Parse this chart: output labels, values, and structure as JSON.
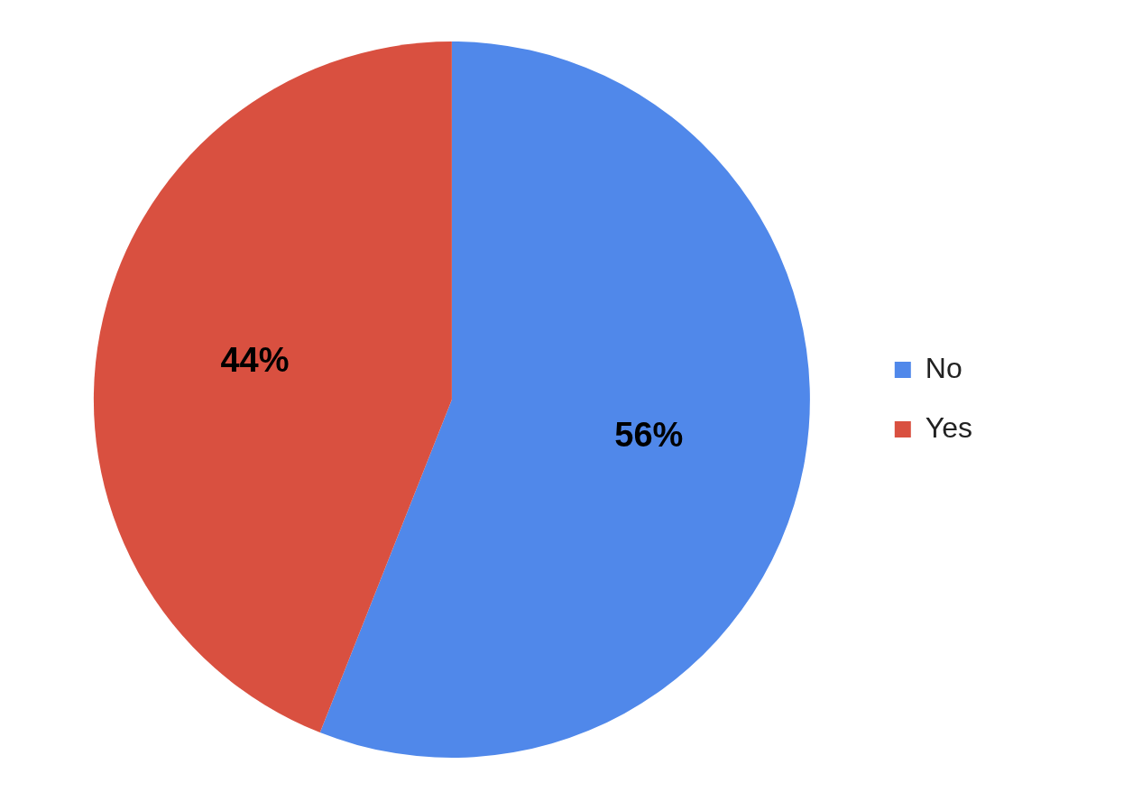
{
  "chart_data": {
    "type": "pie",
    "categories": [
      "No",
      "Yes"
    ],
    "values": [
      56,
      44
    ],
    "colors": [
      "#5088ea",
      "#d95040"
    ],
    "legend": "right",
    "value_labels": [
      "56%",
      "44%"
    ]
  }
}
